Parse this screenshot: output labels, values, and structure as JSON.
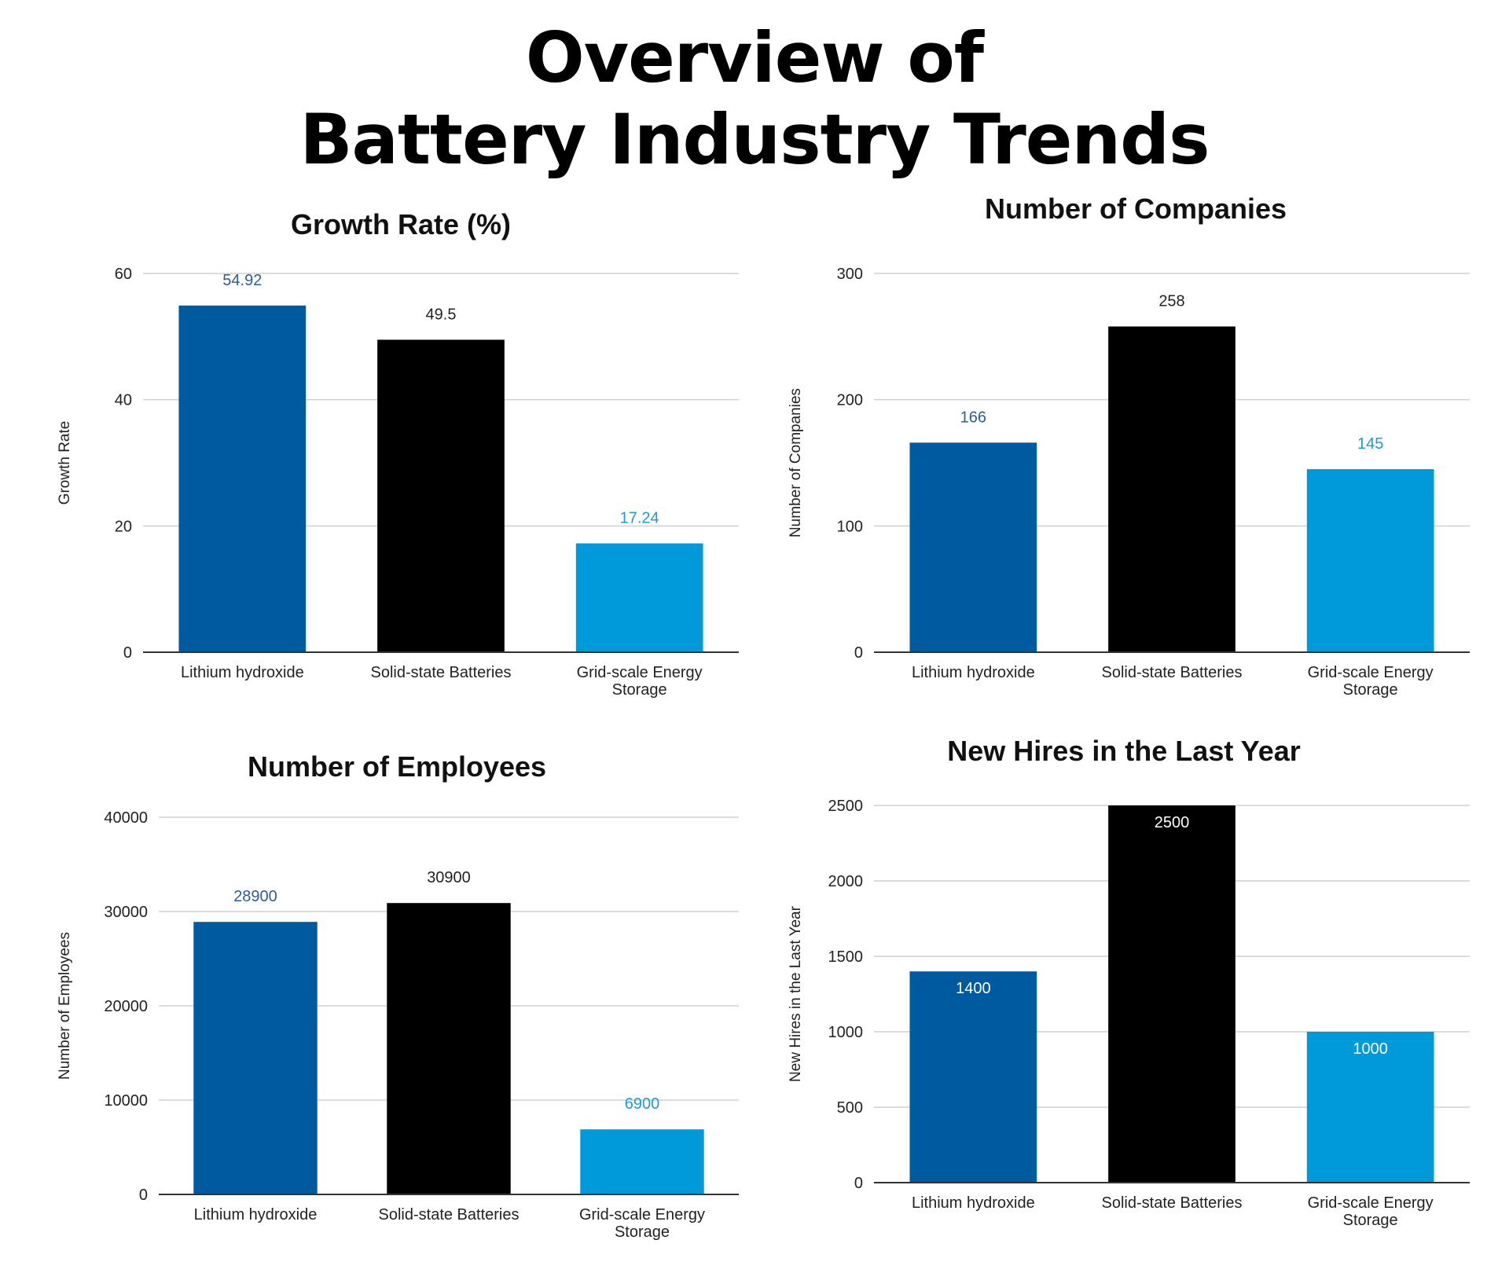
{
  "page": {
    "title_line1": "Overview of",
    "title_line2": "Battery Industry Trends"
  },
  "colors": {
    "lithium": "#005aa0",
    "solid": "#000000",
    "grid_scale": "#009ada",
    "lithium_label": "#2b5d99",
    "grid_scale_label": "#1e9bd7"
  },
  "chart_data": [
    {
      "type": "bar",
      "title": "Growth Rate (%)",
      "xlabel": "",
      "ylabel": "Growth Rate",
      "categories": [
        "Lithium hydroxide",
        "Solid-state Batteries",
        "Grid-scale Energy Storage"
      ],
      "values": [
        54.92,
        49.5,
        17.24
      ],
      "ylim": [
        0,
        60
      ],
      "yticks": [
        0,
        20,
        40,
        60
      ],
      "grid": true,
      "label_position": "above"
    },
    {
      "type": "bar",
      "title": "Number of Companies",
      "xlabel": "",
      "ylabel": "Number of Companies",
      "categories": [
        "Lithium hydroxide",
        "Solid-state Batteries",
        "Grid-scale Energy Storage"
      ],
      "values": [
        166,
        258,
        145
      ],
      "ylim": [
        0,
        300
      ],
      "yticks": [
        0,
        100,
        200,
        300
      ],
      "grid": true,
      "label_position": "above"
    },
    {
      "type": "bar",
      "title": "Number of Employees",
      "xlabel": "",
      "ylabel": "Number of Employees",
      "categories": [
        "Lithium hydroxide",
        "Solid-state Batteries",
        "Grid-scale Energy Storage"
      ],
      "values": [
        28900,
        30900,
        6900
      ],
      "ylim": [
        0,
        40000
      ],
      "yticks": [
        0,
        10000,
        20000,
        30000,
        40000
      ],
      "grid": true,
      "label_position": "above"
    },
    {
      "type": "bar",
      "title": "New Hires in the Last Year",
      "xlabel": "",
      "ylabel": "New Hires in the Last Year",
      "categories": [
        "Lithium hydroxide",
        "Solid-state Batteries",
        "Grid-scale Energy Storage"
      ],
      "values": [
        1400,
        2500,
        1000
      ],
      "ylim": [
        0,
        2500
      ],
      "yticks": [
        0,
        500,
        1000,
        1500,
        2000,
        2500
      ],
      "grid": true,
      "label_position": "inside"
    }
  ]
}
